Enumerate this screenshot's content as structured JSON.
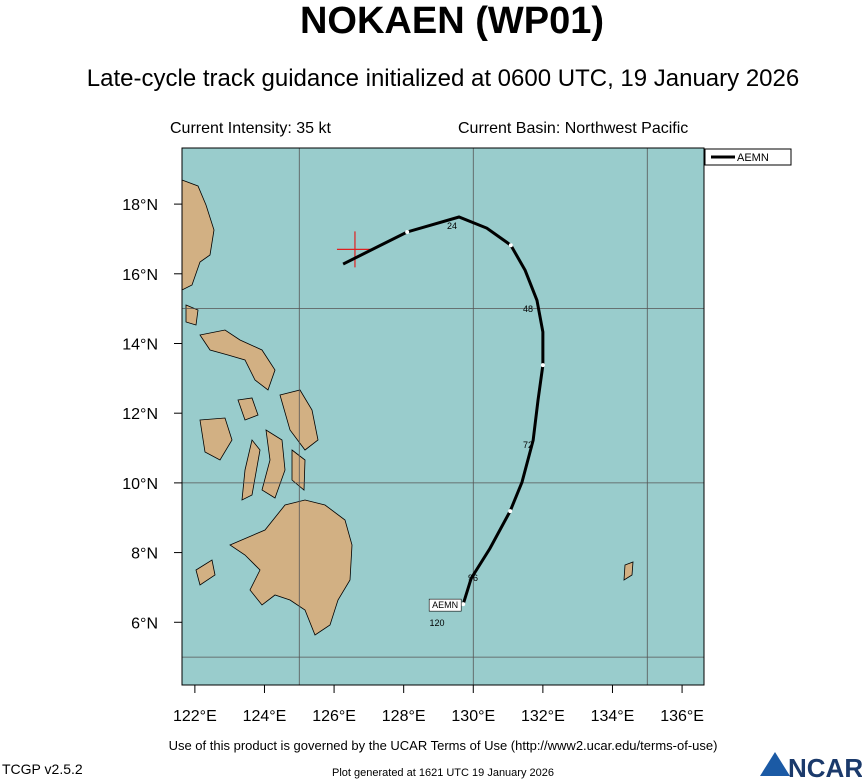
{
  "header": {
    "title": "NOKAEN (WP01)",
    "subtitle": "Late-cycle track guidance initialized at 0600 UTC, 19 January 2026"
  },
  "info": {
    "intensity": "Current Intensity: 35 kt",
    "basin": "Current Basin: Northwest Pacific"
  },
  "map": {
    "lonlim": [
      121.63,
      136.63
    ],
    "latlim": [
      4.2,
      19.61
    ],
    "xticks": [
      {
        "value": 122,
        "label": "122°E"
      },
      {
        "value": 124,
        "label": "124°E"
      },
      {
        "value": 126,
        "label": "126°E"
      },
      {
        "value": 128,
        "label": "128°E"
      },
      {
        "value": 130,
        "label": "130°E"
      },
      {
        "value": 132,
        "label": "132°E"
      },
      {
        "value": 134,
        "label": "134°E"
      },
      {
        "value": 136,
        "label": "136°E"
      }
    ],
    "yticks": [
      {
        "value": 6,
        "label": "6°N"
      },
      {
        "value": 8,
        "label": "8°N"
      },
      {
        "value": 10,
        "label": "10°N"
      },
      {
        "value": 12,
        "label": "12°N"
      },
      {
        "value": 14,
        "label": "14°N"
      },
      {
        "value": 16,
        "label": "16°N"
      },
      {
        "value": 18,
        "label": "18°N"
      }
    ],
    "grid_lon": [
      125,
      130,
      135
    ],
    "grid_lat": [
      5,
      10,
      15
    ],
    "current_position": {
      "lon": 126.6,
      "lat": 16.7
    },
    "track": {
      "name": "AEMN",
      "color": "#000000",
      "lon": [
        126.26,
        128.1,
        129.59,
        130.39,
        131.08,
        131.49,
        131.83,
        132.0,
        132.0,
        131.86,
        131.72,
        131.4,
        131.06,
        130.48,
        129.94,
        129.71
      ],
      "lat": [
        16.28,
        17.2,
        17.63,
        17.31,
        16.82,
        16.1,
        15.24,
        14.33,
        13.38,
        12.37,
        11.22,
        10.02,
        9.19,
        8.12,
        7.26,
        6.52
      ]
    },
    "hour_labels": [
      24,
      48,
      72,
      96,
      120
    ],
    "legend": "AEMN"
  },
  "footer": {
    "terms": "Use of this product is governed by the UCAR Terms of Use (http://www2.ucar.edu/terms-of-use)",
    "version": "TCGP v2.5.2",
    "generated": "Plot generated at 1621 UTC   19 January 2026",
    "logo": "NCAR"
  }
}
